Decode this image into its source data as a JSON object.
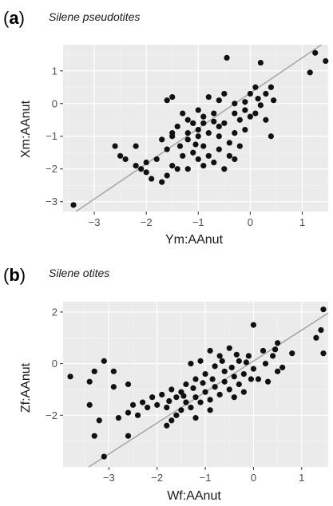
{
  "chart_data": [
    {
      "type": "scatter",
      "panel_label_open": "(",
      "panel_label_letter": "a",
      "panel_label_close": ")",
      "title": "Silene pseudotites",
      "xlabel": "Ym:AAnut",
      "ylabel": "Xm:AAnut",
      "xlim": [
        -3.6,
        1.5
      ],
      "ylim": [
        -3.3,
        1.8
      ],
      "xticks": [
        -3,
        -2,
        -1,
        0,
        1
      ],
      "yticks": [
        -3,
        -2,
        -1,
        0,
        1
      ],
      "xtick_labels": [
        "−3",
        "−2",
        "−1",
        "0",
        "1"
      ],
      "ytick_labels": [
        "−3",
        "−2",
        "−1",
        "0",
        "1"
      ],
      "grid": true,
      "background": "#ebebeb",
      "point_color": "#111111",
      "line_color": "#a8a8a8",
      "fit_line": {
        "intercept": 0.32,
        "slope": 1.08
      },
      "points": [
        [
          -3.4,
          -3.1
        ],
        [
          1.25,
          1.55
        ],
        [
          1.45,
          1.3
        ],
        [
          1.15,
          0.95
        ],
        [
          0.2,
          1.25
        ],
        [
          -0.45,
          1.4
        ],
        [
          -1.5,
          0.2
        ],
        [
          -1.6,
          0.1
        ],
        [
          0.4,
          0.5
        ],
        [
          0.45,
          0.1
        ],
        [
          0.3,
          0.3
        ],
        [
          0.1,
          0.5
        ],
        [
          0.0,
          0.3
        ],
        [
          -0.1,
          0.05
        ],
        [
          0.2,
          -0.05
        ],
        [
          0.1,
          -0.3
        ],
        [
          0.3,
          -0.5
        ],
        [
          -0.3,
          0.0
        ],
        [
          -0.5,
          0.3
        ],
        [
          -0.6,
          0.1
        ],
        [
          -0.8,
          0.2
        ],
        [
          -1.0,
          -0.2
        ],
        [
          -0.9,
          -0.4
        ],
        [
          -0.7,
          -0.3
        ],
        [
          -1.2,
          -0.5
        ],
        [
          -1.3,
          -0.3
        ],
        [
          -1.1,
          -0.6
        ],
        [
          -1.4,
          -0.7
        ],
        [
          -1.5,
          -0.9
        ],
        [
          -0.5,
          -0.6
        ],
        [
          -0.2,
          -0.5
        ],
        [
          0.0,
          -0.4
        ],
        [
          -0.3,
          -0.9
        ],
        [
          -0.6,
          -1.0
        ],
        [
          -0.4,
          -1.2
        ],
        [
          -0.2,
          -1.3
        ],
        [
          -0.1,
          -0.8
        ],
        [
          -0.8,
          -0.9
        ],
        [
          -1.0,
          -1.0
        ],
        [
          -1.2,
          -1.1
        ],
        [
          -1.5,
          -1.0
        ],
        [
          -1.7,
          -1.1
        ],
        [
          -0.9,
          -1.3
        ],
        [
          -1.1,
          -1.5
        ],
        [
          -1.3,
          -1.6
        ],
        [
          -1.6,
          -1.4
        ],
        [
          -1.8,
          -1.7
        ],
        [
          -2.0,
          -1.8
        ],
        [
          -2.1,
          -2.0
        ],
        [
          -2.2,
          -1.9
        ],
        [
          -2.0,
          -2.1
        ],
        [
          -1.9,
          -2.3
        ],
        [
          -1.7,
          -2.4
        ],
        [
          -2.4,
          -1.7
        ],
        [
          -2.6,
          -1.3
        ],
        [
          -2.2,
          -1.3
        ],
        [
          -2.5,
          -1.6
        ],
        [
          -1.5,
          -1.9
        ],
        [
          -1.4,
          -2.0
        ],
        [
          -0.8,
          -1.6
        ],
        [
          -0.6,
          -1.4
        ],
        [
          -0.4,
          -1.6
        ],
        [
          -0.7,
          -1.8
        ],
        [
          -0.5,
          -2.0
        ],
        [
          -1.0,
          -1.7
        ],
        [
          -0.9,
          -1.9
        ],
        [
          -1.2,
          -2.0
        ],
        [
          -1.6,
          -2.2
        ],
        [
          -0.3,
          -1.7
        ],
        [
          0.4,
          -1.0
        ],
        [
          -1.0,
          -0.8
        ],
        [
          -0.6,
          -0.7
        ],
        [
          -1.2,
          -0.9
        ],
        [
          -0.9,
          -0.6
        ],
        [
          -0.3,
          -0.3
        ],
        [
          -0.1,
          -0.2
        ],
        [
          0.15,
          0.15
        ],
        [
          -0.7,
          -0.55
        ],
        [
          -1.05,
          -1.25
        ],
        [
          -1.35,
          -1.3
        ]
      ]
    },
    {
      "type": "scatter",
      "panel_label_open": "(",
      "panel_label_letter": "b",
      "panel_label_close": ")",
      "title": "Silene otites",
      "xlabel": "Wf:AAnut",
      "ylabel": "Zf:AAnut",
      "xlim": [
        -3.95,
        1.55
      ],
      "ylim": [
        -4.0,
        2.4
      ],
      "xticks": [
        -3,
        -2,
        -1,
        0,
        1
      ],
      "yticks": [
        -2,
        0,
        2
      ],
      "xtick_labels": [
        "−3",
        "−2",
        "−1",
        "0",
        "1"
      ],
      "ytick_labels": [
        "−2",
        "0",
        "2"
      ],
      "grid": true,
      "background": "#ebebeb",
      "point_color": "#111111",
      "line_color": "#a8a8a8",
      "fit_line": {
        "intercept": 0.1,
        "slope": 1.2
      },
      "points": [
        [
          1.45,
          2.1
        ],
        [
          1.4,
          1.3
        ],
        [
          1.3,
          1.0
        ],
        [
          1.45,
          0.4
        ],
        [
          0.8,
          0.4
        ],
        [
          0.5,
          0.8
        ],
        [
          0.0,
          1.5
        ],
        [
          0.2,
          0.5
        ],
        [
          0.4,
          0.3
        ],
        [
          0.5,
          -0.3
        ],
        [
          -0.1,
          0.3
        ],
        [
          -0.3,
          0.1
        ],
        [
          -0.5,
          0.6
        ],
        [
          -0.7,
          0.3
        ],
        [
          -0.9,
          0.5
        ],
        [
          -1.1,
          0.1
        ],
        [
          -0.8,
          -0.1
        ],
        [
          -0.6,
          -0.3
        ],
        [
          -0.4,
          -0.5
        ],
        [
          -0.2,
          -0.4
        ],
        [
          0.0,
          -0.2
        ],
        [
          -1.0,
          -0.4
        ],
        [
          -1.2,
          -0.6
        ],
        [
          -1.4,
          -0.8
        ],
        [
          -1.5,
          -1.1
        ],
        [
          -1.7,
          -1.0
        ],
        [
          -1.9,
          -1.2
        ],
        [
          -2.1,
          -1.3
        ],
        [
          -2.3,
          -1.5
        ],
        [
          -2.5,
          -1.6
        ],
        [
          -2.6,
          -1.9
        ],
        [
          -2.4,
          -2.0
        ],
        [
          -2.0,
          -1.6
        ],
        [
          -1.8,
          -1.7
        ],
        [
          -1.6,
          -2.0
        ],
        [
          -1.3,
          -1.7
        ],
        [
          -1.1,
          -1.5
        ],
        [
          -0.9,
          -1.4
        ],
        [
          -0.7,
          -1.2
        ],
        [
          -0.5,
          -1.0
        ],
        [
          -0.3,
          -0.8
        ],
        [
          -1.0,
          -1.1
        ],
        [
          -1.2,
          -1.3
        ],
        [
          -0.8,
          -0.9
        ],
        [
          -0.6,
          -0.7
        ],
        [
          -1.4,
          -1.5
        ],
        [
          -1.6,
          -1.3
        ],
        [
          -2.2,
          -1.7
        ],
        [
          -2.8,
          -2.1
        ],
        [
          -3.2,
          -2.2
        ],
        [
          -2.6,
          -2.8
        ],
        [
          -3.3,
          -2.8
        ],
        [
          -3.1,
          -3.6
        ],
        [
          -3.4,
          -1.6
        ],
        [
          -3.4,
          -0.7
        ],
        [
          -3.8,
          -0.5
        ],
        [
          -3.1,
          0.1
        ],
        [
          -2.9,
          -0.3
        ],
        [
          -3.3,
          -0.3
        ],
        [
          -2.6,
          -0.8
        ],
        [
          -2.9,
          -0.9
        ],
        [
          -1.8,
          -2.4
        ],
        [
          -1.7,
          -2.2
        ],
        [
          -1.5,
          -1.8
        ],
        [
          -1.2,
          -2.1
        ],
        [
          -0.9,
          -1.8
        ],
        [
          -0.4,
          -1.3
        ],
        [
          -0.2,
          -1.1
        ],
        [
          0.1,
          -0.6
        ],
        [
          0.3,
          -0.7
        ],
        [
          -0.05,
          -0.6
        ],
        [
          0.25,
          0.0
        ],
        [
          -1.3,
          0.0
        ],
        [
          -0.45,
          -0.15
        ],
        [
          -0.65,
          0.1
        ],
        [
          -0.85,
          -0.6
        ],
        [
          -1.05,
          -0.75
        ],
        [
          -1.25,
          -0.95
        ],
        [
          -1.45,
          -1.25
        ],
        [
          -1.75,
          -1.45
        ],
        [
          -0.15,
          0.05
        ],
        [
          0.45,
          0.55
        ],
        [
          0.6,
          -0.15
        ],
        [
          -0.35,
          0.35
        ]
      ]
    }
  ]
}
